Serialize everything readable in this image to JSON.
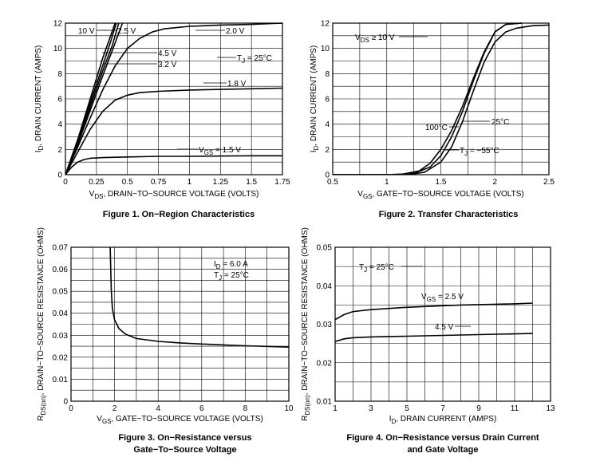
{
  "chart_data": [
    {
      "type": "line",
      "title": "Figure 1. On−Region Characteristics",
      "xlabel": "V_DS, DRAIN−TO−SOURCE VOLTAGE (VOLTS)",
      "xlabel_main": "V",
      "xlabel_sub": "DS",
      "xlabel_rest": ", DRAIN−TO−SOURCE VOLTAGE (VOLTS)",
      "ylabel_main": "I",
      "ylabel_sub": "D",
      "ylabel_rest": ", DRAIN CURRENT (AMPS)",
      "xlim": [
        0,
        1.75
      ],
      "ylim": [
        0,
        12
      ],
      "xticks": [
        0,
        0.25,
        0.5,
        0.75,
        1,
        1.25,
        1.5,
        1.75
      ],
      "xtick_labels": [
        "0",
        "0.25",
        "0.5",
        "0.75",
        "1",
        "1.25",
        "1.5",
        "1.75"
      ],
      "yticks": [
        0,
        2,
        4,
        6,
        8,
        10,
        12
      ],
      "ytick_labels": [
        "0",
        "2",
        "4",
        "6",
        "8",
        "10",
        "12"
      ],
      "xgrid": 7,
      "ygrid": 12,
      "series": [
        {
          "name": "10 V",
          "x": [
            0,
            0.1,
            0.2,
            0.3,
            0.4
          ],
          "y": [
            0,
            2.8,
            6.0,
            9.2,
            12
          ]
        },
        {
          "name": "4.5 V",
          "x": [
            0,
            0.1,
            0.2,
            0.3,
            0.36,
            0.41
          ],
          "y": [
            0,
            2.7,
            5.7,
            8.6,
            10.4,
            12
          ]
        },
        {
          "name": "3.2 V",
          "x": [
            0,
            0.1,
            0.2,
            0.3,
            0.38,
            0.43
          ],
          "y": [
            0,
            2.5,
            5.4,
            8.2,
            10.3,
            12
          ]
        },
        {
          "name": "2.5 V",
          "x": [
            0,
            0.1,
            0.2,
            0.3,
            0.38,
            0.46
          ],
          "y": [
            0,
            2.4,
            5.1,
            7.8,
            9.9,
            12
          ]
        },
        {
          "name": "2.0 V",
          "x": [
            0,
            0.1,
            0.2,
            0.3,
            0.4,
            0.5,
            0.6,
            0.7,
            0.8,
            1.0,
            1.25,
            1.5,
            1.75
          ],
          "y": [
            0,
            2.2,
            4.5,
            6.7,
            8.6,
            10.0,
            10.8,
            11.3,
            11.55,
            11.75,
            11.85,
            11.9,
            12.0
          ]
        },
        {
          "name": "1.8 V",
          "x": [
            0,
            0.1,
            0.2,
            0.3,
            0.4,
            0.5,
            0.6,
            0.75,
            1.0,
            1.25,
            1.5,
            1.75
          ],
          "y": [
            0,
            1.8,
            3.6,
            5.0,
            5.9,
            6.3,
            6.5,
            6.6,
            6.7,
            6.75,
            6.8,
            6.85
          ]
        },
        {
          "name": "V_GS = 1.5 V",
          "x": [
            0,
            0.05,
            0.1,
            0.15,
            0.2,
            0.3,
            0.5,
            0.75,
            1.0,
            1.5,
            1.75
          ],
          "y": [
            0,
            0.6,
            1.0,
            1.2,
            1.3,
            1.35,
            1.4,
            1.45,
            1.45,
            1.5,
            1.5
          ]
        }
      ],
      "annotations": [
        {
          "text": "10 V"
        },
        {
          "text": "2.5 V"
        },
        {
          "text": "2.0 V"
        },
        {
          "text": "4.5 V"
        },
        {
          "text": "3.2 V"
        },
        {
          "text": "T_J = 25°C"
        },
        {
          "text": "1.8 V"
        },
        {
          "text": "V_GS = 1.5 V"
        }
      ]
    },
    {
      "type": "line",
      "title": "Figure 2. Transfer Characteristics",
      "xlabel_main": "V",
      "xlabel_sub": "GS",
      "xlabel_rest": ", GATE−TO−SOURCE VOLTAGE (VOLTS)",
      "ylabel_main": "I",
      "ylabel_sub": "D",
      "ylabel_rest": ", DRAIN CURRENT (AMPS)",
      "xlim": [
        0.5,
        2.5
      ],
      "ylim": [
        0,
        12
      ],
      "xticks": [
        0.5,
        1,
        1.5,
        2,
        2.5
      ],
      "xtick_labels": [
        "0.5",
        "1",
        "1.5",
        "2",
        "2.5"
      ],
      "yticks": [
        0,
        2,
        4,
        6,
        8,
        10,
        12
      ],
      "ytick_labels": [
        "0",
        "2",
        "4",
        "6",
        "8",
        "10",
        "12"
      ],
      "xgrid": 8,
      "ygrid": 12,
      "series": [
        {
          "name": "100°C",
          "x": [
            0.5,
            1.0,
            1.15,
            1.3,
            1.4,
            1.5,
            1.6,
            1.7,
            1.8,
            1.9,
            2.0,
            2.1,
            2.25
          ],
          "y": [
            0,
            0,
            0.05,
            0.3,
            0.9,
            2.0,
            3.5,
            5.4,
            7.6,
            9.7,
            11.3,
            11.9,
            12
          ]
        },
        {
          "name": "25°C",
          "x": [
            0.5,
            1.1,
            1.25,
            1.4,
            1.5,
            1.6,
            1.7,
            1.8,
            1.9,
            2.0,
            2.1,
            2.25
          ],
          "y": [
            0,
            0,
            0.1,
            0.6,
            1.5,
            3.0,
            5.0,
            7.4,
            9.6,
            11.3,
            11.9,
            12
          ]
        },
        {
          "name": "T_J = −55°C",
          "x": [
            0.5,
            1.2,
            1.35,
            1.5,
            1.6,
            1.7,
            1.8,
            1.9,
            2.0,
            2.1,
            2.2,
            2.35,
            2.5
          ],
          "y": [
            0,
            0,
            0.2,
            1.0,
            2.2,
            4.2,
            6.6,
            8.9,
            10.5,
            11.3,
            11.6,
            11.8,
            11.85
          ]
        }
      ],
      "annotations": [
        {
          "text": "V_DS ≥ 10 V"
        },
        {
          "text": "25°C"
        },
        {
          "text": "100°C"
        },
        {
          "text": "T_J = −55°C"
        }
      ]
    },
    {
      "type": "line",
      "title": "Figure 3. On−Resistance versus",
      "title_line2": "Gate−To−Source Voltage",
      "xlabel_main": "V",
      "xlabel_sub": "GS",
      "xlabel_rest": ", GATE−TO−SOURCE VOLTAGE (VOLTS)",
      "ylabel_main": "R",
      "ylabel_sub": "DS(on)",
      "ylabel_rest": ", DRAIN−TO−SOURCE RESISTANCE (OHMS)",
      "xlim": [
        0,
        10
      ],
      "ylim": [
        0,
        0.07
      ],
      "xticks": [
        0,
        2,
        4,
        6,
        8,
        10
      ],
      "xtick_labels": [
        "0",
        "2",
        "4",
        "6",
        "8",
        "10"
      ],
      "yticks": [
        0,
        0.01,
        0.02,
        0.03,
        0.04,
        0.05,
        0.06,
        0.07
      ],
      "ytick_labels": [
        "0",
        "0.01",
        "0.02",
        "0.03",
        "0.04",
        "0.05",
        "0.06",
        "0.07"
      ],
      "xgrid": 10,
      "ygrid": 14,
      "series": [
        {
          "name": "I_D = 6.0 A, T_J = 25°C",
          "x": [
            1.8,
            1.85,
            1.9,
            2.0,
            2.2,
            2.5,
            3.0,
            4.0,
            5.0,
            6.0,
            7.0,
            8.0,
            9.0,
            10.0
          ],
          "y": [
            0.07,
            0.05,
            0.042,
            0.037,
            0.033,
            0.0305,
            0.0285,
            0.0272,
            0.0265,
            0.026,
            0.0256,
            0.0252,
            0.0249,
            0.0246
          ]
        }
      ],
      "annotations": [
        {
          "text": "I_D = 6.0 A"
        },
        {
          "text": "T_J = 25°C"
        }
      ]
    },
    {
      "type": "line",
      "title": "Figure 4. On−Resistance versus Drain Current",
      "title_line2": "and Gate Voltage",
      "xlabel_main": "I",
      "xlabel_sub": "D",
      "xlabel_rest": ", DRAIN CURRENT (AMPS)",
      "ylabel_main": "R",
      "ylabel_sub": "DS(on)",
      "ylabel_rest": ", DRAIN−TO−SOURCE RESISTANCE (OHMS)",
      "xlim": [
        1,
        13
      ],
      "ylim": [
        0.01,
        0.05
      ],
      "xticks": [
        1,
        3,
        5,
        7,
        9,
        11,
        13
      ],
      "xtick_labels": [
        "1",
        "3",
        "5",
        "7",
        "9",
        "11",
        "13"
      ],
      "yticks": [
        0.01,
        0.02,
        0.03,
        0.04,
        0.05
      ],
      "ytick_labels": [
        "0.01",
        "0.02",
        "0.03",
        "0.04",
        "0.05"
      ],
      "xgrid": 12,
      "ygrid": 8,
      "series": [
        {
          "name": "V_GS = 2.5 V",
          "x": [
            1,
            1.5,
            2,
            3,
            4,
            5,
            6,
            7,
            8,
            9,
            10,
            11,
            12
          ],
          "y": [
            0.0312,
            0.0325,
            0.0333,
            0.0338,
            0.0341,
            0.0344,
            0.0346,
            0.0348,
            0.035,
            0.0351,
            0.0352,
            0.0353,
            0.0355
          ]
        },
        {
          "name": "4.5 V",
          "x": [
            1,
            1.5,
            2,
            3,
            4,
            5,
            6,
            7,
            8,
            9,
            10,
            11,
            12
          ],
          "y": [
            0.0255,
            0.0262,
            0.0265,
            0.0267,
            0.0268,
            0.0269,
            0.027,
            0.0271,
            0.0272,
            0.0273,
            0.0274,
            0.0275,
            0.0276
          ]
        }
      ],
      "annotations": [
        {
          "text": "T_J = 25°C"
        },
        {
          "text": "V_GS = 2.5 V"
        },
        {
          "text": "4.5 V"
        }
      ]
    }
  ]
}
